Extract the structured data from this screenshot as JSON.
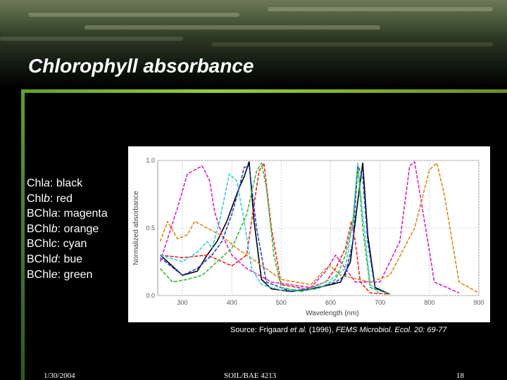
{
  "slide": {
    "title": "Chlorophyll absorbance",
    "legend": [
      {
        "pigment": "Chl",
        "suffix": "a",
        "color_name": "black"
      },
      {
        "pigment": "Chl",
        "suffix": "b",
        "color_name": "red"
      },
      {
        "pigment": "BChl",
        "suffix": "a",
        "color_name": "magenta"
      },
      {
        "pigment": "BChl",
        "suffix": "b",
        "color_name": "orange"
      },
      {
        "pigment": "BChl",
        "suffix": "c",
        "color_name": "cyan"
      },
      {
        "pigment": "BChl",
        "suffix": "d",
        "color_name": "bue"
      },
      {
        "pigment": "BChl",
        "suffix": "e",
        "color_name": "green"
      }
    ],
    "source": {
      "prefix": "Source: Frigaard ",
      "etal": "et al.",
      "year": " (1996),   ",
      "journal": "FEMS Microbiol. Ecol. 20: 69-77"
    },
    "footer": {
      "date": "1/30/2004",
      "course": "SOIL/BAE 4213",
      "page": "18"
    }
  },
  "chart_data": {
    "type": "line",
    "xlabel": "Wavelength (nm)",
    "ylabel": "Normalized absorbance",
    "xlim": [
      250,
      900
    ],
    "ylim": [
      0,
      1.0
    ],
    "xticks": [
      300,
      400,
      500,
      600,
      700,
      800,
      900
    ],
    "yticks": [
      0.0,
      0.5,
      1.0
    ],
    "grid": true,
    "series": [
      {
        "color": "#000000",
        "style": "solid",
        "x": [
          255,
          300,
          330,
          350,
          370,
          390,
          405,
          415,
          425,
          435,
          445,
          460,
          480,
          520,
          560,
          600,
          620,
          640,
          655,
          665,
          675,
          690,
          720
        ],
        "y": [
          0.3,
          0.15,
          0.18,
          0.3,
          0.4,
          0.55,
          0.7,
          0.8,
          0.88,
          0.99,
          0.55,
          0.12,
          0.05,
          0.03,
          0.05,
          0.08,
          0.1,
          0.25,
          0.7,
          0.98,
          0.45,
          0.06,
          0.01
        ]
      },
      {
        "color": "#ff2020",
        "style": "dashed",
        "x": [
          255,
          300,
          350,
          400,
          430,
          440,
          455,
          465,
          480,
          500,
          550,
          590,
          610,
          630,
          642,
          650,
          660,
          680,
          720
        ],
        "y": [
          0.3,
          0.28,
          0.3,
          0.22,
          0.3,
          0.55,
          0.92,
          0.98,
          0.5,
          0.08,
          0.05,
          0.1,
          0.2,
          0.35,
          0.55,
          0.4,
          0.1,
          0.02,
          0.01
        ]
      },
      {
        "color": "#e020c0",
        "style": "dashed",
        "x": [
          255,
          290,
          310,
          340,
          355,
          365,
          380,
          400,
          430,
          480,
          560,
          590,
          610,
          650,
          700,
          740,
          760,
          770,
          790,
          810,
          860
        ],
        "y": [
          0.25,
          0.65,
          0.9,
          0.96,
          0.85,
          0.62,
          0.45,
          0.3,
          0.2,
          0.1,
          0.06,
          0.18,
          0.3,
          0.1,
          0.1,
          0.4,
          0.96,
          0.99,
          0.55,
          0.1,
          0.02
        ]
      },
      {
        "color": "#e08a10",
        "style": "dashed",
        "x": [
          255,
          270,
          290,
          310,
          325,
          340,
          360,
          380,
          410,
          450,
          500,
          560,
          590,
          600,
          620,
          680,
          720,
          770,
          800,
          815,
          830,
          860,
          900
        ],
        "y": [
          0.4,
          0.55,
          0.42,
          0.45,
          0.55,
          0.52,
          0.48,
          0.44,
          0.35,
          0.25,
          0.12,
          0.08,
          0.2,
          0.22,
          0.15,
          0.1,
          0.15,
          0.5,
          0.93,
          0.98,
          0.75,
          0.1,
          0.02
        ]
      },
      {
        "color": "#30d0e0",
        "style": "dashed",
        "x": [
          255,
          300,
          330,
          350,
          360,
          375,
          395,
          410,
          425,
          440,
          460,
          500,
          560,
          600,
          630,
          645,
          655,
          665,
          680,
          700
        ],
        "y": [
          0.3,
          0.25,
          0.32,
          0.4,
          0.35,
          0.55,
          0.9,
          0.85,
          0.55,
          0.2,
          0.08,
          0.04,
          0.05,
          0.12,
          0.2,
          0.55,
          0.98,
          0.6,
          0.08,
          0.01
        ]
      },
      {
        "color": "#2040e0",
        "style": "dashed",
        "x": [
          255,
          300,
          330,
          360,
          380,
          400,
          415,
          425,
          435,
          450,
          470,
          520,
          570,
          610,
          630,
          645,
          655,
          665,
          675,
          690,
          720
        ],
        "y": [
          0.28,
          0.15,
          0.2,
          0.3,
          0.4,
          0.6,
          0.8,
          0.95,
          0.96,
          0.5,
          0.1,
          0.03,
          0.05,
          0.1,
          0.15,
          0.4,
          0.96,
          0.88,
          0.4,
          0.05,
          0.01
        ]
      },
      {
        "color": "#30c030",
        "style": "dashed",
        "x": [
          255,
          280,
          310,
          340,
          370,
          400,
          430,
          450,
          460,
          470,
          485,
          500,
          540,
          580,
          610,
          630,
          645,
          655,
          665,
          680,
          720
        ],
        "y": [
          0.2,
          0.1,
          0.12,
          0.15,
          0.25,
          0.35,
          0.6,
          0.92,
          0.98,
          0.8,
          0.3,
          0.06,
          0.03,
          0.06,
          0.12,
          0.3,
          0.55,
          0.96,
          0.5,
          0.06,
          0.01
        ]
      }
    ]
  }
}
